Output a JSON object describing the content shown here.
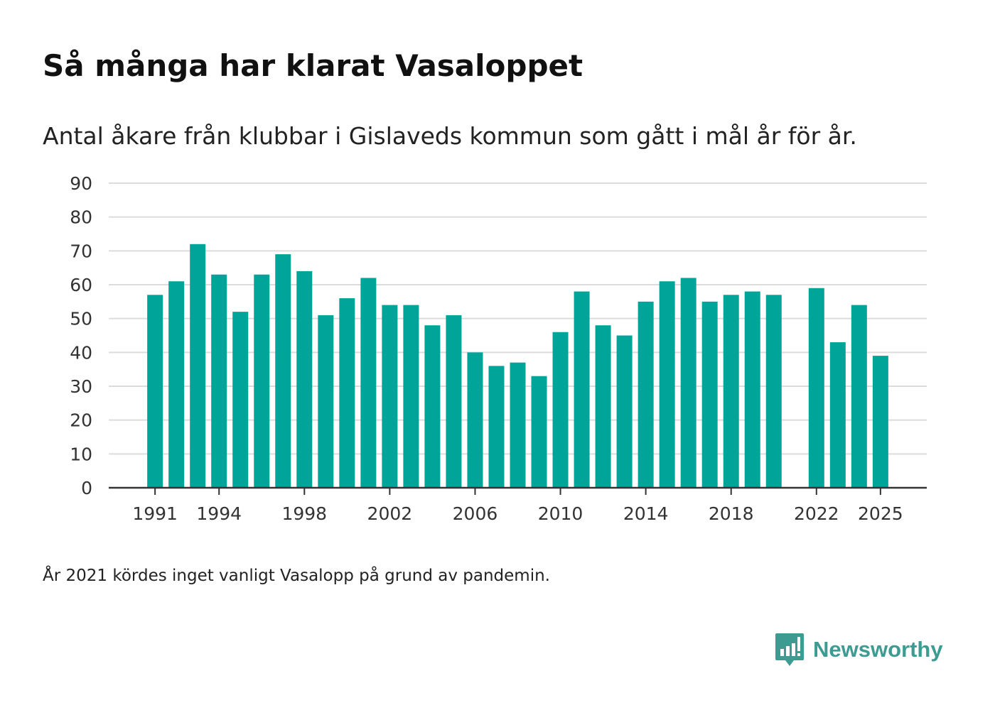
{
  "chart_data": {
    "type": "bar",
    "title": "Så många har klarat Vasaloppet",
    "subtitle": "Antal åkare från klubbar i Gislaveds kommun som gått i mål år för år.",
    "note": "År 2021 kördes inget vanligt Vasalopp på grund av pandemin.",
    "xlabel": "",
    "ylabel": "",
    "ylim": [
      0,
      90
    ],
    "yticks": [
      0,
      10,
      20,
      30,
      40,
      50,
      60,
      70,
      80,
      90
    ],
    "xticks": [
      1991,
      1994,
      1998,
      2002,
      2006,
      2010,
      2014,
      2018,
      2022,
      2025
    ],
    "grid": true,
    "color": "#00a499",
    "categories": [
      1991,
      1992,
      1993,
      1994,
      1995,
      1996,
      1997,
      1998,
      1999,
      2000,
      2001,
      2002,
      2003,
      2004,
      2005,
      2006,
      2007,
      2008,
      2009,
      2010,
      2011,
      2012,
      2013,
      2014,
      2015,
      2016,
      2017,
      2018,
      2019,
      2020,
      2021,
      2022,
      2023,
      2024,
      2025
    ],
    "values": [
      57,
      61,
      72,
      63,
      52,
      63,
      69,
      64,
      51,
      56,
      62,
      54,
      54,
      48,
      51,
      40,
      36,
      37,
      33,
      46,
      58,
      48,
      45,
      55,
      61,
      62,
      55,
      57,
      58,
      57,
      null,
      59,
      43,
      54,
      39
    ]
  },
  "brand": {
    "name": "Newsworthy",
    "color": "#3d9b92",
    "icon": "newsworthy-logo-icon"
  }
}
